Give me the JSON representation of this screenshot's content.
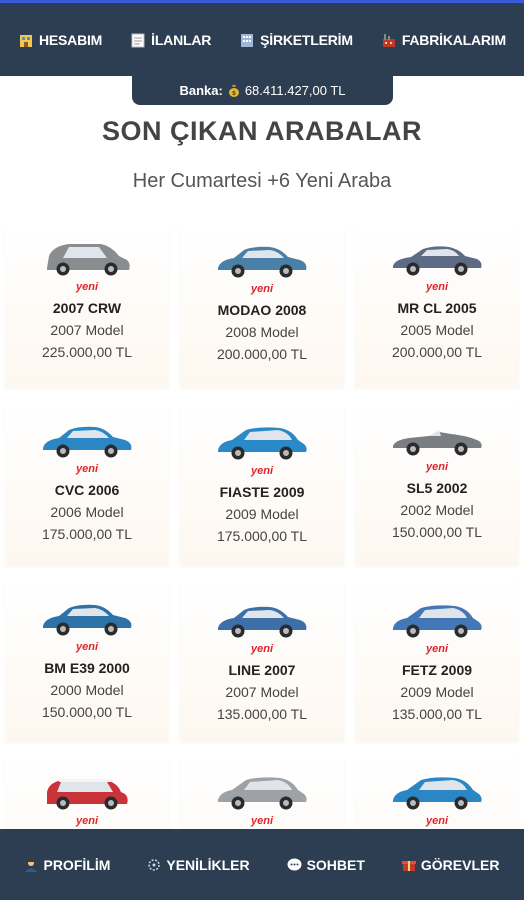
{
  "topnav": [
    {
      "label": "HESABIM",
      "icon": "building-icon"
    },
    {
      "label": "İLANLAR",
      "icon": "listing-icon"
    },
    {
      "label": "ŞİRKETLERİM",
      "icon": "office-icon"
    },
    {
      "label": "FABRİKALARIM",
      "icon": "factory-icon"
    }
  ],
  "bank": {
    "label": "Banka:",
    "amount": "68.411.427,00 TL",
    "icon": "money-bag-icon"
  },
  "title": "SON ÇIKAN ARABALAR",
  "subtitle": "Her Cumartesi +6 Yeni Araba",
  "badge": "yeni",
  "cars": [
    {
      "name": "2007 CRW",
      "model": "2007 Model",
      "price": "225.000,00 TL",
      "color": "#8a8d90",
      "shape": "suv"
    },
    {
      "name": "MODAO 2008",
      "model": "2008 Model",
      "price": "200.000,00 TL",
      "color": "#4a7fa8",
      "shape": "sedan"
    },
    {
      "name": "MR CL 2005",
      "model": "2005 Model",
      "price": "200.000,00 TL",
      "color": "#5e6b86",
      "shape": "coupe"
    },
    {
      "name": "CVC 2006",
      "model": "2006 Model",
      "price": "175.000,00 TL",
      "color": "#2a86c4",
      "shape": "sedan"
    },
    {
      "name": "FIASTE 2009",
      "model": "2009 Model",
      "price": "175.000,00 TL",
      "color": "#2a8ac9",
      "shape": "hatch"
    },
    {
      "name": "SL5 2002",
      "model": "2002 Model",
      "price": "150.000,00 TL",
      "color": "#7a7d82",
      "shape": "roadster"
    },
    {
      "name": "BM E39 2000",
      "model": "2000 Model",
      "price": "150.000,00 TL",
      "color": "#2d73a8",
      "shape": "sedan"
    },
    {
      "name": "LINE 2007",
      "model": "2007 Model",
      "price": "135.000,00 TL",
      "color": "#3d6fa8",
      "shape": "sedan"
    },
    {
      "name": "FETZ 2009",
      "model": "2009 Model",
      "price": "135.000,00 TL",
      "color": "#4477b8",
      "shape": "hatch"
    },
    {
      "name": "",
      "model": "",
      "price": "",
      "color": "#c9343a",
      "shape": "mini"
    },
    {
      "name": "",
      "model": "",
      "price": "",
      "color": "#9ea2a6",
      "shape": "hatch"
    },
    {
      "name": "",
      "model": "",
      "price": "",
      "color": "#2a86c4",
      "shape": "hatch"
    }
  ],
  "bottomnav": [
    {
      "label": "PROFİLİM",
      "icon": "person-icon"
    },
    {
      "label": "YENİLİKLER",
      "icon": "sparkle-icon"
    },
    {
      "label": "SOHBET",
      "icon": "chat-icon"
    },
    {
      "label": "GÖREVLER",
      "icon": "gift-icon"
    }
  ]
}
